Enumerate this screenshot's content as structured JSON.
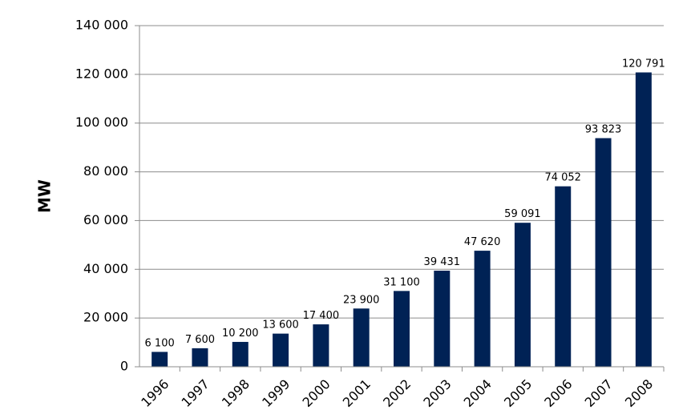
{
  "chart_data": {
    "type": "bar",
    "title": "",
    "xlabel": "",
    "ylabel": "MW",
    "categories": [
      "1996",
      "1997",
      "1998",
      "1999",
      "2000",
      "2001",
      "2002",
      "2003",
      "2004",
      "2005",
      "2006",
      "2007",
      "2008"
    ],
    "values": [
      6100,
      7600,
      10200,
      13600,
      17400,
      23900,
      31100,
      39431,
      47620,
      59091,
      74052,
      93823,
      120791
    ],
    "data_labels": [
      "6 100",
      "7 600",
      "10 200",
      "13 600",
      "17 400",
      "23 900",
      "31 100",
      "39 431",
      "47 620",
      "59 091",
      "74 052",
      "93 823",
      "120 791"
    ],
    "y_ticks": [
      0,
      20000,
      40000,
      60000,
      80000,
      100000,
      120000,
      140000
    ],
    "y_tick_labels": [
      "0",
      "20 000",
      "40 000",
      "60 000",
      "80 000",
      "100 000",
      "120 000",
      "140 000"
    ],
    "ylim": [
      0,
      140000
    ],
    "grid": true,
    "legend": "none",
    "bar_color": "#002255"
  }
}
